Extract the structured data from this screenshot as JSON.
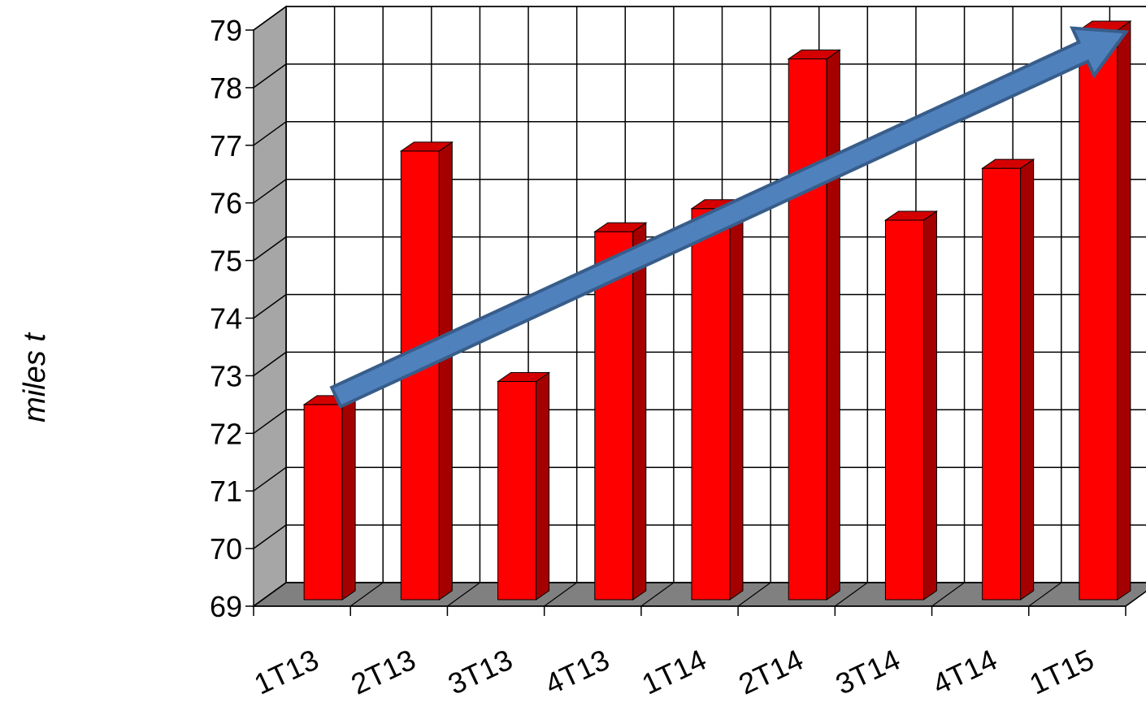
{
  "chart_data": {
    "type": "bar",
    "style": "3d-column",
    "categories": [
      "1T13",
      "2T13",
      "3T13",
      "4T13",
      "1T14",
      "2T14",
      "3T14",
      "4T14",
      "1T15"
    ],
    "values": [
      72.5,
      76.9,
      72.9,
      75.5,
      75.9,
      78.5,
      75.7,
      76.6,
      79.0
    ],
    "xlabel": "",
    "ylabel": "miles t",
    "ylim": [
      69,
      79
    ],
    "yticks": [
      69,
      70,
      71,
      72,
      73,
      74,
      75,
      76,
      77,
      78,
      79
    ],
    "grid": true,
    "legend": "none",
    "trend_arrow": {
      "from_category": "1T13",
      "to_category": "1T15",
      "from_value": 72.8,
      "to_value": 78.6
    },
    "colors": {
      "bar_front": "#ff0000",
      "bar_side": "#a50000",
      "bar_top": "#d40000",
      "back_wall": "#ffffff",
      "side_wall": "#a6a6a6",
      "floor": "#808080",
      "arrow_fill": "#4f81bd",
      "arrow_stroke": "#385d8a"
    }
  }
}
